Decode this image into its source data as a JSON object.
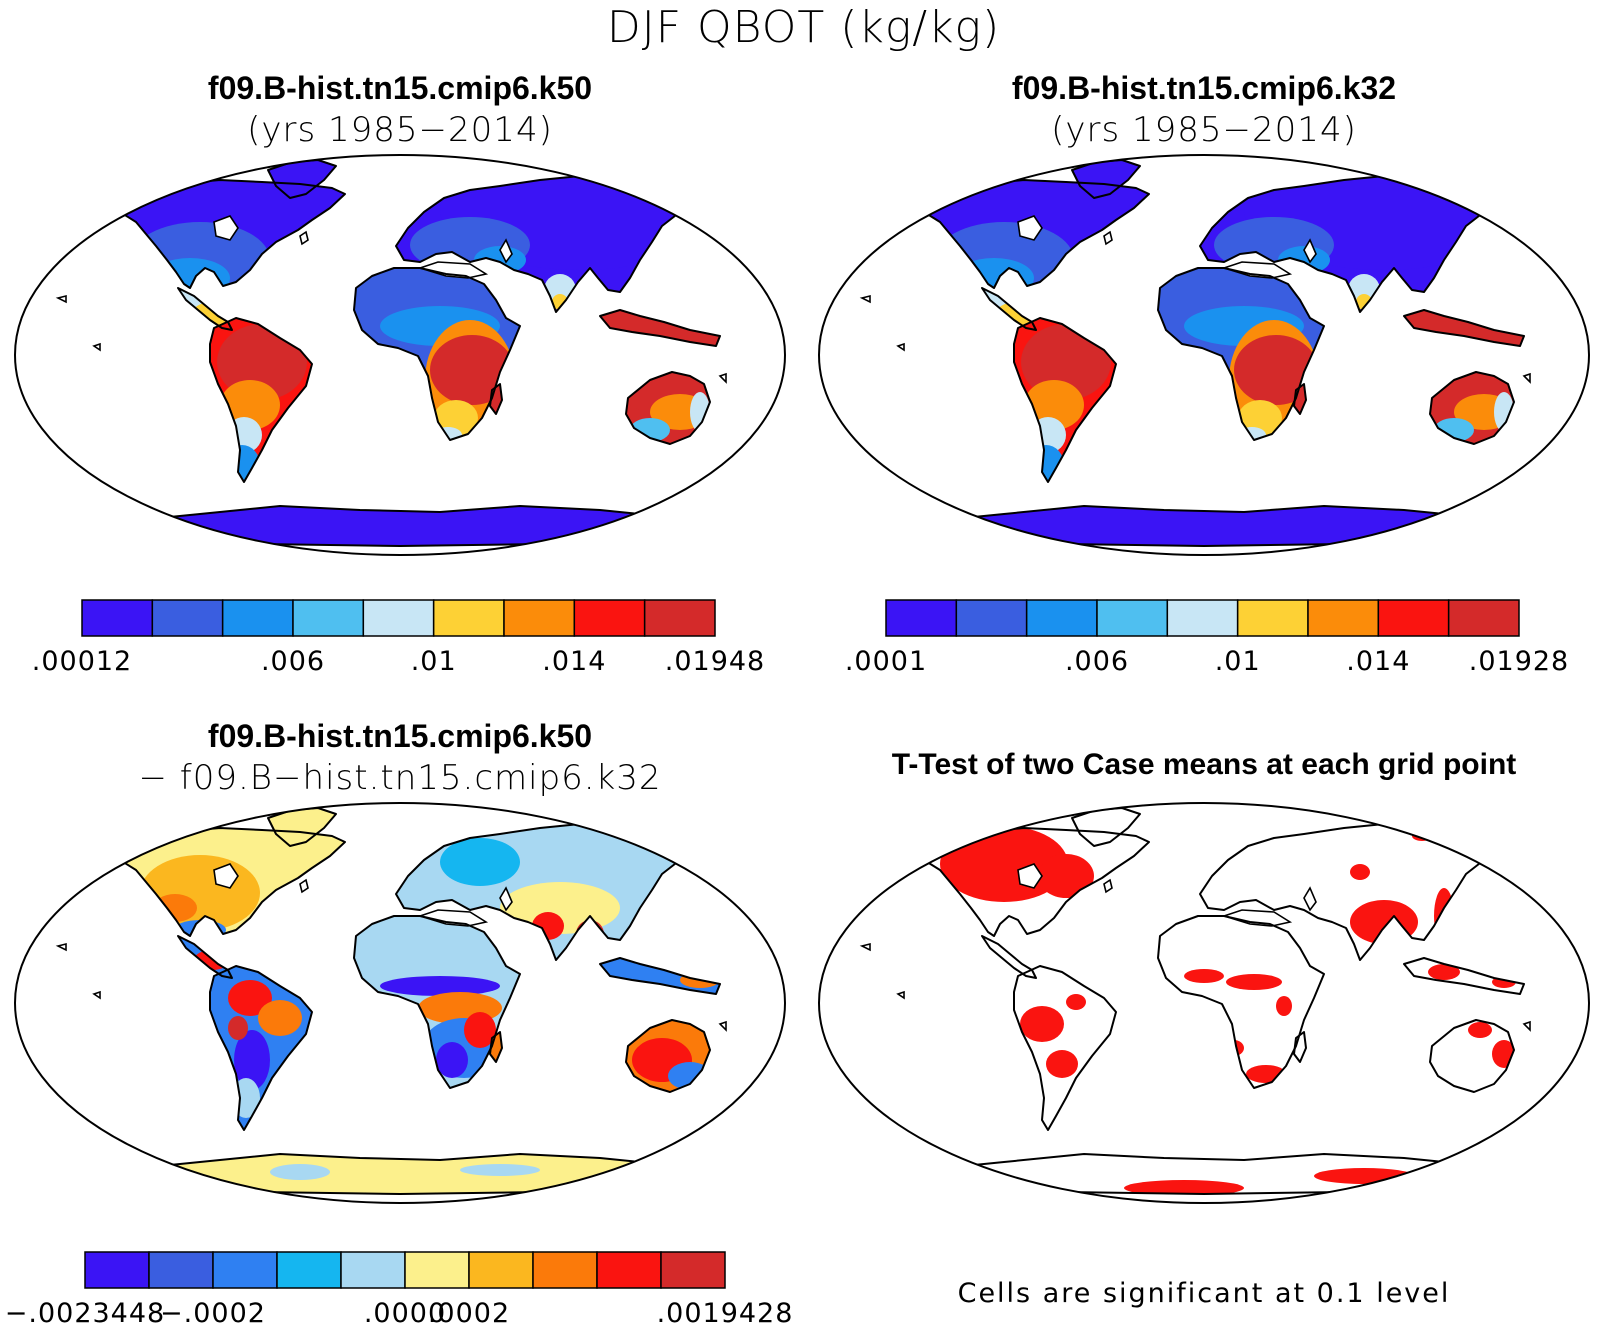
{
  "title": "DJF QBOT (kg/kg)",
  "colors": {
    "abs": [
      "#3b14f5",
      "#3a5ee0",
      "#1a91ef",
      "#4fbff0",
      "#c8e6f5",
      "#fdd135",
      "#fb8c0a",
      "#fa1410",
      "#d42a2a"
    ],
    "diff": [
      "#3b14f5",
      "#3a5ee0",
      "#2f80f2",
      "#15b6f0",
      "#a8d8f2",
      "#fcf08c",
      "#fbb71f",
      "#fb7a0a",
      "#fa1410",
      "#d42a2a"
    ],
    "ttest": "#fa1410"
  },
  "panels": {
    "p1": {
      "title": "f09.B-hist.tn15.cmip6.k50",
      "subtitle": "(yrs 1985−2014)",
      "colorbar_labels": [
        ".00012",
        ".006",
        ".01",
        ".014",
        ".01948"
      ]
    },
    "p2": {
      "title": "f09.B-hist.tn15.cmip6.k32",
      "subtitle": "(yrs 1985−2014)",
      "colorbar_labels": [
        ".0001",
        ".006",
        ".01",
        ".014",
        ".01928"
      ]
    },
    "p3": {
      "title": "f09.B-hist.tn15.cmip6.k50",
      "subtitle": "− f09.B−hist.tn15.cmip6.k32",
      "colorbar_labels": [
        "−.0023448",
        "−.0002",
        ".0000",
        ".0002",
        ".0019428"
      ]
    },
    "p4": {
      "title": "T-Test of two Case means at each grid point",
      "note": "Cells are significant at 0.1 level"
    }
  }
}
